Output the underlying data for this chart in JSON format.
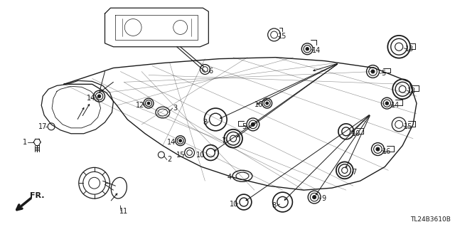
{
  "bg_color": "#ffffff",
  "fig_width": 6.4,
  "fig_height": 3.19,
  "dpi": 100,
  "watermark": "TL24B3610B",
  "line_color": "#1a1a1a",
  "label_fontsize": 7.0
}
